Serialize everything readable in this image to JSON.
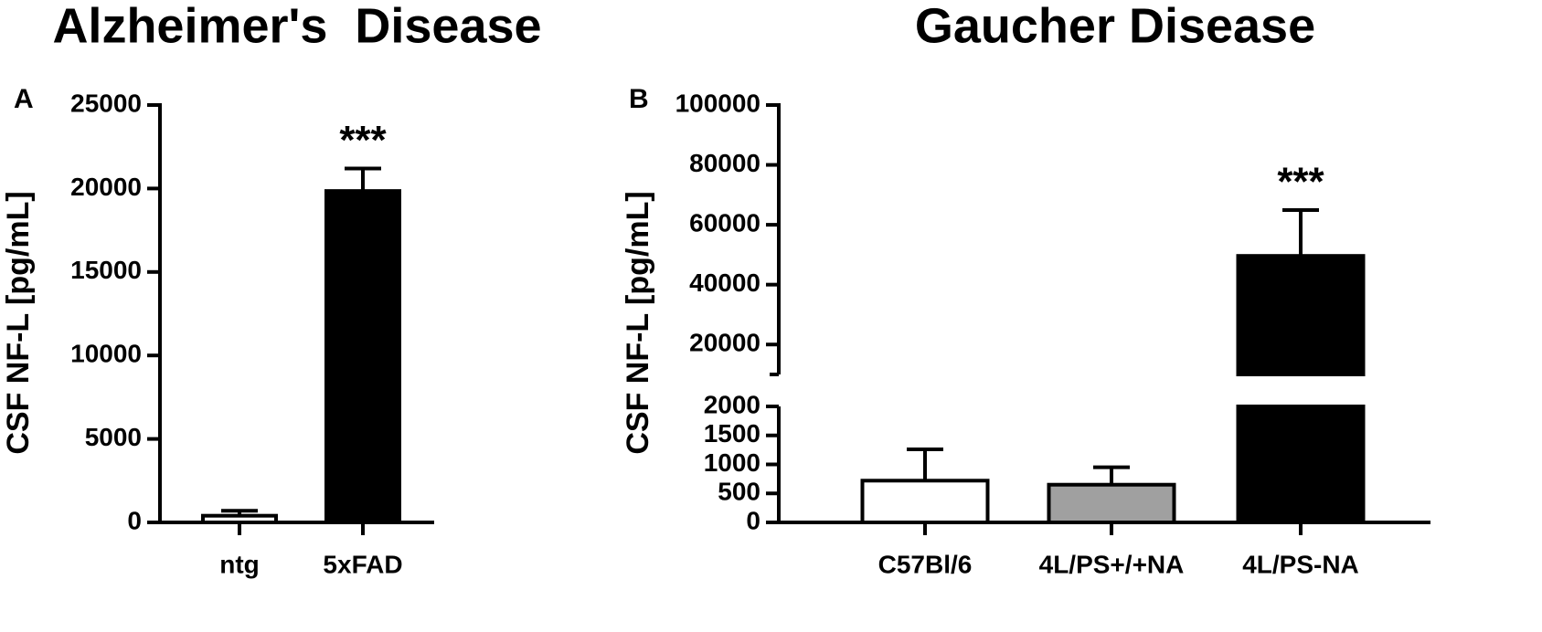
{
  "chart_data": [
    {
      "type": "bar",
      "title": "Alzheimer's  Disease",
      "panel_label": "A",
      "y_label": "CSF NF-L [pg/mL]",
      "categories": [
        "ntg",
        "5xFAD"
      ],
      "values": [
        400,
        19850
      ],
      "errors": [
        300,
        1350
      ],
      "colors": [
        "#ffffff",
        "#000000"
      ],
      "significance": [
        null,
        "***"
      ],
      "ylim": [
        0,
        25000
      ],
      "yticks": [
        0,
        5000,
        10000,
        15000,
        20000,
        25000
      ]
    },
    {
      "type": "bar",
      "title": "Gaucher Disease",
      "panel_label": "B",
      "y_label": "CSF NF-L [pg/mL]",
      "categories": [
        "C57Bl/6",
        "4L/PS+/+NA",
        "4L/PS-NA"
      ],
      "values": [
        720,
        650,
        49600
      ],
      "errors": [
        540,
        300,
        15300
      ],
      "colors": [
        "#ffffff",
        "#a0a0a0",
        "#000000"
      ],
      "significance": [
        null,
        null,
        "***"
      ],
      "ylim": [
        0,
        100000
      ],
      "y_break": [
        2000,
        10000
      ],
      "yticks": [
        0,
        500,
        1000,
        1500,
        2000,
        20000,
        40000,
        60000,
        80000,
        100000
      ]
    }
  ]
}
